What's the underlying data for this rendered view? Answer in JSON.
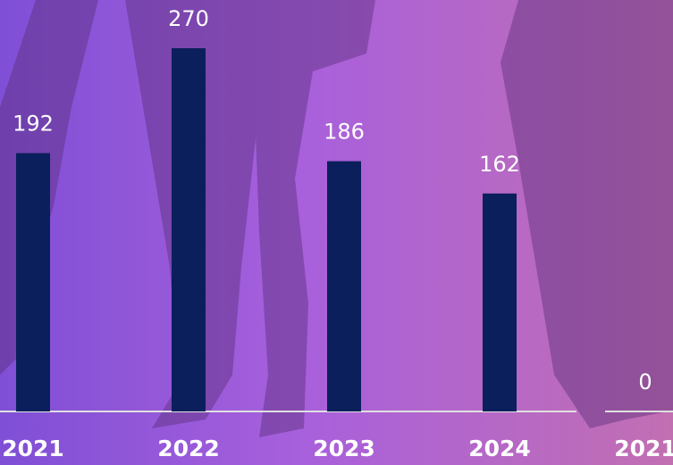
{
  "chart_data": [
    {
      "type": "bar",
      "categories": [
        "2021",
        "2022",
        "2023",
        "2024"
      ],
      "values": [
        192,
        270,
        186,
        162
      ],
      "color": "#0b1f5c",
      "ylim": [
        0,
        270
      ]
    },
    {
      "type": "bar",
      "categories": [
        "2021"
      ],
      "values": [
        0
      ],
      "color": "#0b1f5c",
      "ylim": [
        0,
        270
      ]
    }
  ]
}
